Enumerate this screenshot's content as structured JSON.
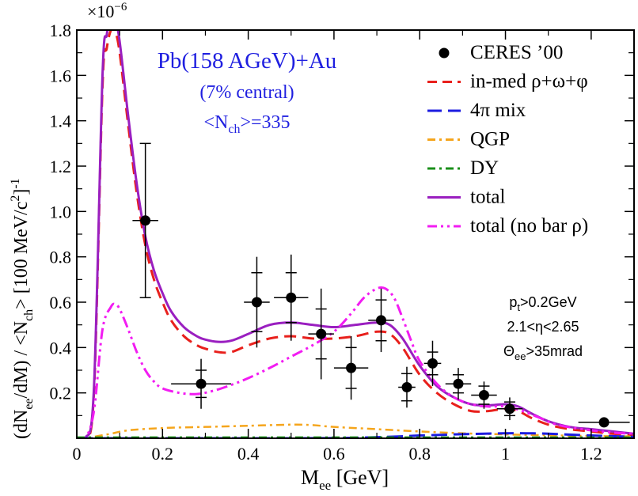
{
  "chart_data": {
    "type": "line",
    "xlabel": {
      "main": "M",
      "sub": "ee",
      "rest": " [GeV]"
    },
    "ylabel": {
      "p1": "(dN",
      "s1": "ee",
      "p2": "/dM) / <N",
      "s2": "ch",
      "p3": "> [100 MeV/c",
      "sup": "2",
      "p4": "]",
      "sup2": "-1"
    },
    "y_multiplier": {
      "base": "×10",
      "exp": "−6"
    },
    "xlim": [
      0,
      1.3
    ],
    "ylim": [
      0,
      1.8
    ],
    "xticks": [
      0,
      0.2,
      0.4,
      0.6,
      0.8,
      1.0,
      1.2
    ],
    "xtick_labels": [
      "0",
      "0.2",
      "0.4",
      "0.6",
      "0.8",
      "1",
      "1.2"
    ],
    "yticks": [
      0.2,
      0.4,
      0.6,
      0.8,
      1.0,
      1.2,
      1.4,
      1.6,
      1.8
    ],
    "ytick_labels": [
      "0.2",
      "0.4",
      "0.6",
      "0.8",
      "1.0",
      "1.2",
      "1.4",
      "1.6",
      "1.8"
    ],
    "title_lines": {
      "line1": "Pb(158 AGeV)+Au",
      "line2": "(7% central)",
      "line3_a": "<N",
      "line3_sub": "ch",
      "line3_b": ">=335"
    },
    "cuts": {
      "c1_a": "p",
      "c1_sub": "t",
      "c1_b": ">0.2GeV",
      "c2": "2.1<η<2.65",
      "c3_a": "Θ",
      "c3_sub": "ee",
      "c3_b": ">35mrad"
    },
    "legend_position": "top-right",
    "legend": [
      {
        "label": "CERES ’00",
        "style": "marker",
        "color": "#000000"
      },
      {
        "label": "in-med ρ+ω+φ",
        "style": "dash",
        "color": "#e8201c"
      },
      {
        "label": "4π mix",
        "style": "longdash",
        "color": "#1c1ce0"
      },
      {
        "label": "QGP",
        "style": "dashdot",
        "color": "#f5a51c"
      },
      {
        "label": "DY",
        "style": "dashdot",
        "color": "#1a8f1a"
      },
      {
        "label": "total",
        "style": "solid",
        "color": "#9a1fc0"
      },
      {
        "label": "total (no bar ρ)",
        "style": "dashdotdot",
        "color": "#f21cf2"
      }
    ],
    "series": [
      {
        "key": "inmed",
        "color": "#e8201c",
        "dash": "15,8",
        "width": 3,
        "x": [
          0.0,
          0.02,
          0.04,
          0.06,
          0.07,
          0.08,
          0.09,
          0.1,
          0.12,
          0.14,
          0.16,
          0.18,
          0.2,
          0.22,
          0.25,
          0.28,
          0.3,
          0.33,
          0.36,
          0.4,
          0.45,
          0.5,
          0.55,
          0.6,
          0.65,
          0.7,
          0.73,
          0.76,
          0.8,
          0.84,
          0.88,
          0.92,
          0.96,
          1.0,
          1.03,
          1.06,
          1.1,
          1.15,
          1.2,
          1.25,
          1.3
        ],
        "y": [
          0.0,
          0.0,
          0.2,
          1.55,
          1.72,
          1.8,
          1.79,
          1.7,
          1.38,
          1.08,
          0.85,
          0.7,
          0.6,
          0.52,
          0.45,
          0.41,
          0.395,
          0.38,
          0.38,
          0.41,
          0.44,
          0.45,
          0.44,
          0.44,
          0.45,
          0.47,
          0.46,
          0.4,
          0.28,
          0.2,
          0.15,
          0.12,
          0.12,
          0.13,
          0.12,
          0.09,
          0.06,
          0.04,
          0.03,
          0.02,
          0.015
        ]
      },
      {
        "key": "total",
        "color": "#9a1fc0",
        "dash": "",
        "width": 3,
        "x": [
          0.0,
          0.02,
          0.04,
          0.06,
          0.07,
          0.08,
          0.09,
          0.1,
          0.12,
          0.14,
          0.16,
          0.18,
          0.2,
          0.22,
          0.25,
          0.28,
          0.3,
          0.33,
          0.36,
          0.4,
          0.45,
          0.5,
          0.55,
          0.6,
          0.65,
          0.7,
          0.73,
          0.76,
          0.8,
          0.84,
          0.88,
          0.92,
          0.96,
          1.0,
          1.03,
          1.06,
          1.1,
          1.15,
          1.2,
          1.25,
          1.3
        ],
        "y": [
          0.0,
          0.0,
          0.22,
          1.6,
          1.78,
          1.86,
          1.84,
          1.75,
          1.42,
          1.12,
          0.89,
          0.74,
          0.64,
          0.56,
          0.49,
          0.45,
          0.435,
          0.425,
          0.43,
          0.46,
          0.5,
          0.51,
          0.5,
          0.49,
          0.5,
          0.51,
          0.5,
          0.44,
          0.32,
          0.23,
          0.18,
          0.15,
          0.145,
          0.15,
          0.14,
          0.11,
          0.075,
          0.05,
          0.04,
          0.03,
          0.02
        ]
      },
      {
        "key": "nobar",
        "color": "#f21cf2",
        "dash": "14,5,3,5,3,5",
        "width": 3,
        "x": [
          0.0,
          0.02,
          0.04,
          0.06,
          0.08,
          0.09,
          0.1,
          0.12,
          0.14,
          0.16,
          0.18,
          0.2,
          0.24,
          0.28,
          0.32,
          0.36,
          0.4,
          0.45,
          0.5,
          0.55,
          0.6,
          0.64,
          0.67,
          0.7,
          0.72,
          0.74,
          0.76,
          0.78,
          0.8,
          0.84,
          0.88,
          0.92,
          0.96,
          1.0,
          1.04,
          1.08,
          1.12,
          1.18,
          1.25,
          1.3
        ],
        "y": [
          0.0,
          0.0,
          0.12,
          0.48,
          0.58,
          0.59,
          0.57,
          0.48,
          0.38,
          0.3,
          0.25,
          0.22,
          0.2,
          0.195,
          0.21,
          0.235,
          0.265,
          0.31,
          0.36,
          0.41,
          0.47,
          0.55,
          0.62,
          0.66,
          0.66,
          0.62,
          0.53,
          0.43,
          0.34,
          0.24,
          0.18,
          0.15,
          0.14,
          0.14,
          0.12,
          0.09,
          0.06,
          0.04,
          0.025,
          0.02
        ]
      },
      {
        "key": "qgp",
        "color": "#f5a51c",
        "dash": "10,5,3,5",
        "width": 2.5,
        "x": [
          0.0,
          0.02,
          0.05,
          0.08,
          0.12,
          0.2,
          0.3,
          0.4,
          0.5,
          0.55,
          0.6,
          0.7,
          0.8,
          0.9,
          1.0,
          1.1,
          1.2,
          1.3
        ],
        "y": [
          0.0,
          0.0,
          0.01,
          0.02,
          0.035,
          0.045,
          0.05,
          0.055,
          0.06,
          0.058,
          0.05,
          0.04,
          0.03,
          0.022,
          0.017,
          0.013,
          0.01,
          0.008
        ]
      },
      {
        "key": "mix",
        "color": "#1c1ce0",
        "dash": "20,8",
        "width": 3,
        "x": [
          0.0,
          0.3,
          0.5,
          0.65,
          0.75,
          0.8,
          0.85,
          0.9,
          0.95,
          1.0,
          1.05,
          1.1,
          1.2,
          1.3
        ],
        "y": [
          0.0,
          0.0,
          0.0,
          0.002,
          0.008,
          0.012,
          0.015,
          0.018,
          0.02,
          0.022,
          0.022,
          0.02,
          0.012,
          0.006
        ]
      },
      {
        "key": "dy",
        "color": "#1a8f1a",
        "dash": "10,5,3,5",
        "width": 2.5,
        "x": [
          0.0,
          0.2,
          0.4,
          0.6,
          0.8,
          1.0,
          1.2,
          1.3
        ],
        "y": [
          0.004,
          0.004,
          0.004,
          0.004,
          0.004,
          0.004,
          0.004,
          0.004
        ]
      }
    ],
    "data_points": [
      {
        "x": 0.16,
        "y": 0.96,
        "xerr": 0.03,
        "ey": 0.34,
        "sys": 0.34
      },
      {
        "x": 0.29,
        "y": 0.24,
        "xerr": 0.07,
        "ey": 0.11,
        "sys": 0.06
      },
      {
        "x": 0.42,
        "y": 0.6,
        "xerr": 0.03,
        "ey": 0.2,
        "sys": 0.13
      },
      {
        "x": 0.5,
        "y": 0.62,
        "xerr": 0.04,
        "ey": 0.19,
        "sys": 0.11
      },
      {
        "x": 0.57,
        "y": 0.46,
        "xerr": 0.03,
        "ey": 0.2,
        "sys": 0.11
      },
      {
        "x": 0.64,
        "y": 0.31,
        "xerr": 0.04,
        "ey": 0.14,
        "sys": 0.09
      },
      {
        "x": 0.71,
        "y": 0.52,
        "xerr": 0.03,
        "ey": 0.14,
        "sys": 0.09
      },
      {
        "x": 0.77,
        "y": 0.225,
        "xerr": 0.02,
        "ey": 0.09,
        "sys": 0.06
      },
      {
        "x": 0.83,
        "y": 0.33,
        "xerr": 0.02,
        "ey": 0.1,
        "sys": 0.05
      },
      {
        "x": 0.89,
        "y": 0.24,
        "xerr": 0.03,
        "ey": 0.07,
        "sys": 0.04
      },
      {
        "x": 0.95,
        "y": 0.19,
        "xerr": 0.03,
        "ey": 0.06,
        "sys": 0.04
      },
      {
        "x": 1.01,
        "y": 0.13,
        "xerr": 0.03,
        "ey": 0.05,
        "sys": 0.03
      },
      {
        "x": 1.23,
        "y": 0.07,
        "xerr": 0.06,
        "ey": 0.02,
        "sys": 0.0
      }
    ]
  }
}
